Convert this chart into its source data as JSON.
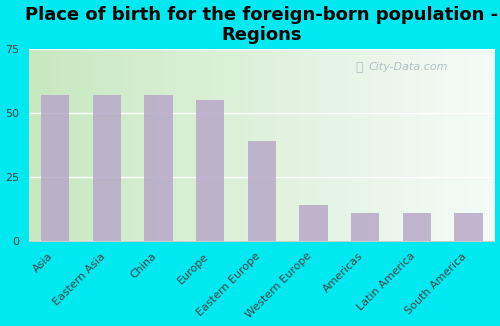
{
  "title": "Place of birth for the foreign-born population -\nRegions",
  "categories": [
    "Asia",
    "Eastern Asia",
    "China",
    "Europe",
    "Eastern Europe",
    "Western Europe",
    "Americas",
    "Latin America",
    "South America"
  ],
  "values": [
    57,
    57,
    57,
    55,
    39,
    14,
    11,
    11,
    11
  ],
  "bar_color": "#b8a8c8",
  "background_outer": "#00e8f0",
  "ylim": [
    0,
    75
  ],
  "yticks": [
    0,
    25,
    50,
    75
  ],
  "title_fontsize": 13,
  "tick_fontsize": 8,
  "watermark": "City-Data.com",
  "gradient_left": "#c8e8c0",
  "gradient_right": "#f0faf8"
}
